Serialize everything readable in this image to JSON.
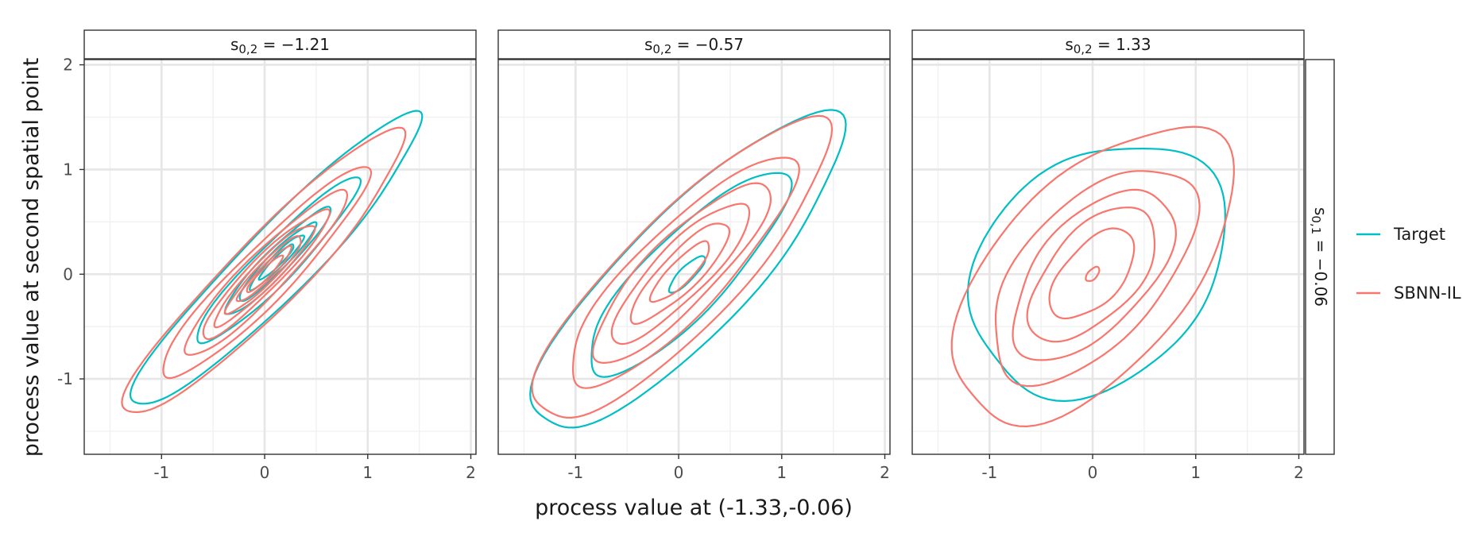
{
  "chart_data": {
    "type": "contour",
    "xlabel": "process value at (-1.33,-0.06)",
    "ylabel": "process value at second spatial point",
    "xlim": [
      -1.75,
      2.05
    ],
    "ylim": [
      -1.72,
      2.05
    ],
    "x_ticks": [
      -1,
      0,
      1,
      2
    ],
    "y_ticks": [
      -1,
      0,
      1,
      2
    ],
    "x_tick_labels": [
      "-1",
      "0",
      "1",
      "2"
    ],
    "y_tick_labels": [
      "-1",
      "0",
      "1",
      "2"
    ],
    "grid": true,
    "legend_position": "right",
    "row_strip": {
      "var": "s",
      "sub": "0,1",
      "value": "−0.06"
    },
    "series": [
      {
        "name": "Target",
        "color": "#00BFC4"
      },
      {
        "name": "SBNN-IL",
        "color": "#F8766D"
      }
    ],
    "panels": [
      {
        "strip": {
          "var": "s",
          "sub": "0,2",
          "value": "−1.21"
        },
        "Target": {
          "center": [
            0.12,
            0.12
          ],
          "angle_deg": 45,
          "sigma_major": 1.3,
          "sigma_minor": 0.22,
          "levels": [
            1.5,
            0.85,
            0.55,
            0.4,
            0.28,
            0.18
          ]
        },
        "SBNN-IL": {
          "center": [
            0.0,
            0.0
          ],
          "angle_deg": 45,
          "sigma_major": 1.22,
          "sigma_minor": 0.22,
          "levels": [
            1.55,
            1.15,
            0.9,
            0.7,
            0.55,
            0.42,
            0.3,
            0.2
          ]
        }
      },
      {
        "strip": {
          "var": "s",
          "sub": "0,2",
          "value": "−0.57"
        },
        "Target": {
          "center": [
            0.08,
            0.0
          ],
          "angle_deg": 45,
          "sigma_major": 1.32,
          "sigma_minor": 0.38,
          "levels": [
            1.55,
            1.0,
            0.18
          ]
        },
        "SBNN-IL": {
          "center": [
            0.02,
            0.02
          ],
          "angle_deg": 45,
          "sigma_major": 1.3,
          "sigma_minor": 0.36,
          "levels": [
            1.5,
            1.15,
            0.9,
            0.7,
            0.5,
            0.3
          ]
        }
      },
      {
        "strip": {
          "var": "s",
          "sub": "0,2",
          "value": "1.33"
        },
        "Target": {
          "center": [
            0.05,
            0.05
          ],
          "angle_deg": 42,
          "sigma_major": 0.95,
          "sigma_minor": 0.72,
          "levels": [
            1.45
          ]
        },
        "SBNN-IL": {
          "center": [
            0.0,
            0.0
          ],
          "angle_deg": 47,
          "sigma_major": 1.05,
          "sigma_minor": 0.55,
          "levels": [
            1.65,
            1.2,
            0.95,
            0.75,
            0.5,
            0.08
          ]
        }
      }
    ]
  }
}
